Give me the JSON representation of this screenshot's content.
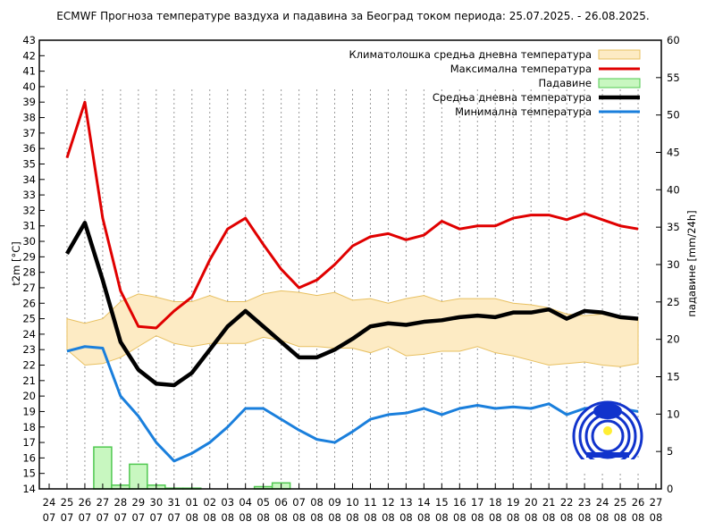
{
  "chart_data": {
    "type": "line",
    "title": "ECMWF Прогноза температуре ваздуха и падавина за Београд током периода: 25.07.2025. - 26.08.2025.",
    "ylabel": "t2m [°C]",
    "y2label": "падавине [mm/24h]",
    "ylim": [
      14,
      43
    ],
    "y2lim": [
      0,
      60
    ],
    "grid": "vertical dotted",
    "legend_placement": "top-right",
    "x_ticks": [
      "24\n07",
      "25\n07",
      "26\n07",
      "27\n07",
      "28\n07",
      "29\n07",
      "30\n07",
      "31\n07",
      "01\n08",
      "02\n08",
      "03\n08",
      "04\n08",
      "05\n08",
      "06\n08",
      "07\n08",
      "08\n08",
      "09\n08",
      "10\n08",
      "11\n08",
      "12\n08",
      "13\n08",
      "14\n08",
      "15\n08",
      "16\n08",
      "17\n08",
      "18\n08",
      "19\n08",
      "20\n08",
      "21\n08",
      "22\n08",
      "23\n08",
      "24\n08",
      "25\n08",
      "26\n08",
      "27\n08"
    ],
    "x": [
      "25.07",
      "26.07",
      "27.07",
      "28.07",
      "29.07",
      "30.07",
      "31.07",
      "01.08",
      "02.08",
      "03.08",
      "04.08",
      "05.08",
      "06.08",
      "07.08",
      "08.08",
      "09.08",
      "10.08",
      "11.08",
      "12.08",
      "13.08",
      "14.08",
      "15.08",
      "16.08",
      "17.08",
      "18.08",
      "19.08",
      "20.08",
      "21.08",
      "22.08",
      "23.08",
      "24.08",
      "25.08",
      "26.08"
    ],
    "climate_band": {
      "name": "Климатолошка средња дневна температура",
      "color": "#fdebc4",
      "upper": [
        25,
        24.7,
        25,
        26.1,
        26.6,
        26.4,
        26.1,
        26.1,
        26.5,
        26.1,
        26.1,
        26.6,
        26.8,
        26.7,
        26.5,
        26.7,
        26.2,
        26.3,
        26,
        26.3,
        26.5,
        26.1,
        26.3,
        26.3,
        26.3,
        26,
        25.9,
        25.7,
        25.3,
        25.2,
        25.3,
        25.2,
        25
      ],
      "lower": [
        23,
        22,
        22.1,
        22.5,
        23.2,
        23.9,
        23.4,
        23.2,
        23.4,
        23.4,
        23.4,
        23.8,
        23.6,
        23.2,
        23.2,
        23.1,
        23.1,
        22.8,
        23.2,
        22.6,
        22.7,
        22.9,
        22.9,
        23.2,
        22.8,
        22.6,
        22.3,
        22,
        22.1,
        22.2,
        22,
        21.9,
        22.1
      ]
    },
    "series": [
      {
        "name": "Максимална температура",
        "color": "#e00000",
        "values": [
          35.4,
          39,
          31.5,
          26.8,
          24.5,
          24.4,
          25.5,
          26.4,
          28.8,
          30.8,
          31.5,
          29.8,
          28.2,
          27,
          27.5,
          28.5,
          29.7,
          30.3,
          30.5,
          30.1,
          30.4,
          31.3,
          30.8,
          31,
          31,
          31.5,
          31.7,
          31.7,
          31.4,
          31.8,
          31.4,
          31,
          30.8
        ]
      },
      {
        "name": "Средња дневна температура",
        "color": "#000000",
        "values": [
          29.2,
          31.2,
          27.5,
          23.5,
          21.7,
          20.8,
          20.7,
          21.5,
          23,
          24.5,
          25.5,
          24.5,
          23.5,
          22.5,
          22.5,
          23,
          23.7,
          24.5,
          24.7,
          24.6,
          24.8,
          24.9,
          25.1,
          25.2,
          25.1,
          25.4,
          25.4,
          25.6,
          25,
          25.5,
          25.4,
          25.1,
          25
        ]
      },
      {
        "name": "Минимална температура",
        "color": "#1a7fdc",
        "values": [
          22.9,
          23.2,
          23.1,
          20,
          18.7,
          17,
          15.8,
          16.3,
          17,
          18,
          19.2,
          19.2,
          18.5,
          17.8,
          17.2,
          17,
          17.7,
          18.5,
          18.8,
          18.9,
          19.2,
          18.8,
          19.2,
          19.4,
          19.2,
          19.3,
          19.2,
          19.5,
          18.8,
          19.2,
          19.3,
          19.2,
          19
        ]
      }
    ],
    "precipitation": {
      "name": "Падавине",
      "color": "#c8f7c0",
      "edge": "#50c850",
      "values": [
        0,
        0,
        5.6,
        0.5,
        3.3,
        0.5,
        0.1,
        0.1,
        0,
        0,
        0,
        0.3,
        0.8,
        0,
        0,
        0,
        0,
        0,
        0,
        0,
        0,
        0,
        0,
        0,
        0,
        0,
        0,
        0,
        0,
        0,
        0,
        0,
        0
      ]
    },
    "left_ticks": [
      14,
      15,
      16,
      17,
      18,
      19,
      20,
      21,
      22,
      23,
      24,
      25,
      26,
      27,
      28,
      29,
      30,
      31,
      32,
      33,
      34,
      35,
      36,
      37,
      38,
      39,
      40,
      41,
      42,
      43
    ],
    "right_ticks": [
      0,
      5,
      10,
      15,
      20,
      25,
      30,
      35,
      40,
      45,
      50,
      55,
      60
    ]
  }
}
